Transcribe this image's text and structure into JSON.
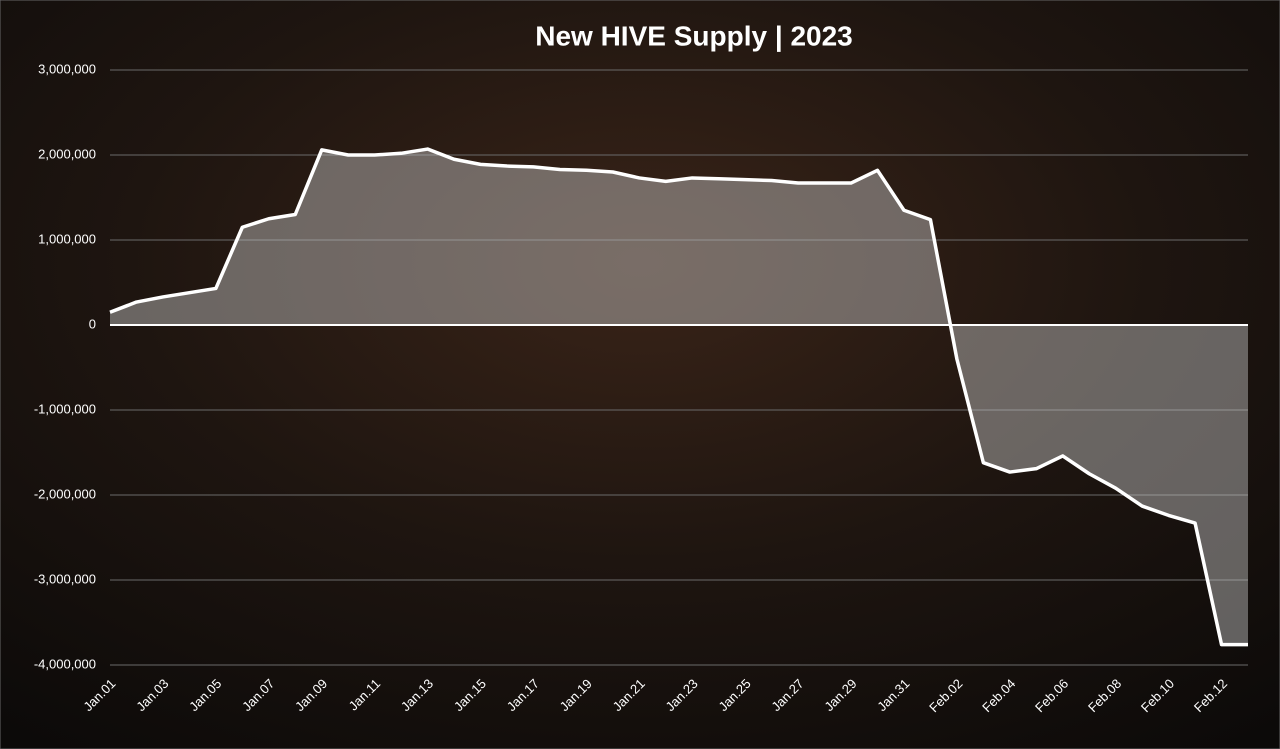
{
  "chart_data": {
    "type": "area",
    "title": "New HIVE Supply | 2023",
    "categories": [
      "Jan.01",
      null,
      "Jan.03",
      null,
      "Jan.05",
      null,
      "Jan.07",
      null,
      "Jan.09",
      null,
      "Jan.11",
      null,
      "Jan.13",
      null,
      "Jan.15",
      null,
      "Jan.17",
      null,
      "Jan.19",
      null,
      "Jan.21",
      null,
      "Jan.23",
      null,
      "Jan.25",
      null,
      "Jan.27",
      null,
      "Jan.29",
      null,
      "Jan.31",
      null,
      "Feb.02",
      null,
      "Feb.04",
      null,
      "Feb.06",
      null,
      "Feb.08",
      null,
      "Feb.10",
      null,
      "Feb.12",
      null
    ],
    "values": [
      150000,
      270000,
      330000,
      380000,
      430000,
      1150000,
      1250000,
      1300000,
      2060000,
      2000000,
      2000000,
      2020000,
      2070000,
      1950000,
      1890000,
      1870000,
      1860000,
      1830000,
      1820000,
      1800000,
      1730000,
      1690000,
      1730000,
      1720000,
      1710000,
      1700000,
      1670000,
      1670000,
      1670000,
      1820000,
      1350000,
      1240000,
      -400000,
      -1620000,
      -1730000,
      -1690000,
      -1540000,
      -1750000,
      -1920000,
      -2130000,
      -2240000,
      -2330000,
      -3760000,
      -3760000
    ],
    "ylim": [
      -4000000,
      3000000
    ],
    "yticks": [
      {
        "value": -4000000,
        "label": "-4,000,000"
      },
      {
        "value": -3000000,
        "label": "-3,000,000"
      },
      {
        "value": -2000000,
        "label": "-2,000,000"
      },
      {
        "value": -1000000,
        "label": "-1,000,000"
      },
      0,
      {
        "value": 1000000,
        "label": "1,000,000"
      },
      {
        "value": 2000000,
        "label": "2,000,000"
      },
      {
        "value": 3000000,
        "label": "3,000,000"
      }
    ],
    "grid": true,
    "line_color": "#ffffff",
    "fill_color": "rgba(200,200,200,0.45)"
  }
}
